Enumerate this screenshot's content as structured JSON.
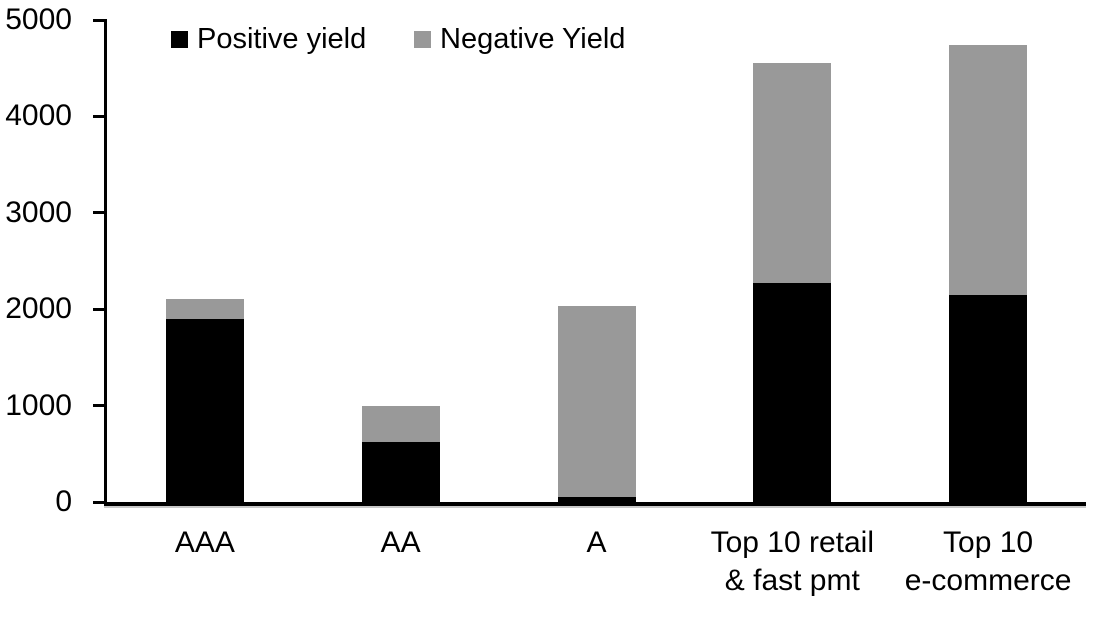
{
  "chart_data": {
    "type": "bar",
    "stacked": true,
    "categories": [
      "AAA",
      "AA",
      "A",
      "Top 10 retail\n& fast pmt",
      "Top 10\ne-commerce"
    ],
    "series": [
      {
        "name": "Positive yield",
        "color": "#000000",
        "values": [
          1900,
          620,
          50,
          2270,
          2150
        ]
      },
      {
        "name": "Negative Yield",
        "color": "#999999",
        "values": [
          210,
          380,
          1980,
          2280,
          2590
        ]
      }
    ],
    "y_axis": {
      "min": 0,
      "max": 5000,
      "tick_interval": 1000,
      "ticks": [
        0,
        1000,
        2000,
        3000,
        4000,
        5000
      ]
    },
    "legend_position": "top",
    "grid": false,
    "background_color": "#ffffff",
    "axis_color": "#000000"
  }
}
